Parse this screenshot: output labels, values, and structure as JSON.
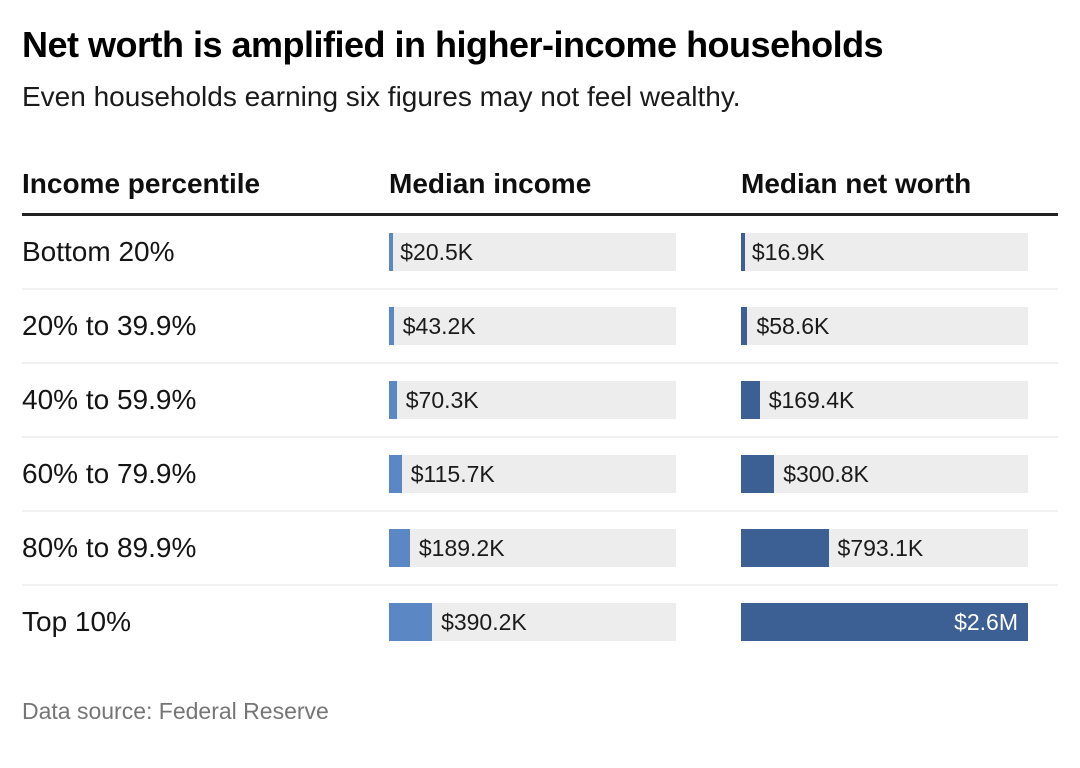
{
  "header": {
    "title": "Net worth is amplified in higher-income households",
    "subtitle": "Even households earning six figures may not feel wealthy."
  },
  "table": {
    "columns": [
      "Income percentile",
      "Median income",
      "Median net worth"
    ]
  },
  "chart_data": {
    "type": "bar",
    "orientation": "horizontal",
    "title": "Net worth is amplified in higher-income households",
    "subtitle": "Even households earning six figures may not feel wealthy.",
    "categories": [
      "Bottom 20%",
      "20% to 39.9%",
      "40% to 59.9%",
      "60% to 79.9%",
      "80% to 89.9%",
      "Top 10%"
    ],
    "series": [
      {
        "name": "Median income",
        "color": "#5b87c5",
        "values": [
          20500,
          43200,
          70300,
          115700,
          189200,
          390200
        ],
        "labels": [
          "$20.5K",
          "$43.2K",
          "$70.3K",
          "$115.7K",
          "$189.2K",
          "$390.2K"
        ]
      },
      {
        "name": "Median net worth",
        "color": "#3c5f94",
        "values": [
          16900,
          58600,
          169400,
          300800,
          793100,
          2600000
        ],
        "labels": [
          "$16.9K",
          "$58.6K",
          "$169.4K",
          "$300.8K",
          "$793.1K",
          "$2.6M"
        ]
      }
    ],
    "scale_max": 2600000,
    "track_color": "#ededed",
    "grid": false,
    "legend": "none",
    "value_label_inside_threshold_pct": 90
  },
  "footer": {
    "source": "Data source: Federal Reserve"
  }
}
